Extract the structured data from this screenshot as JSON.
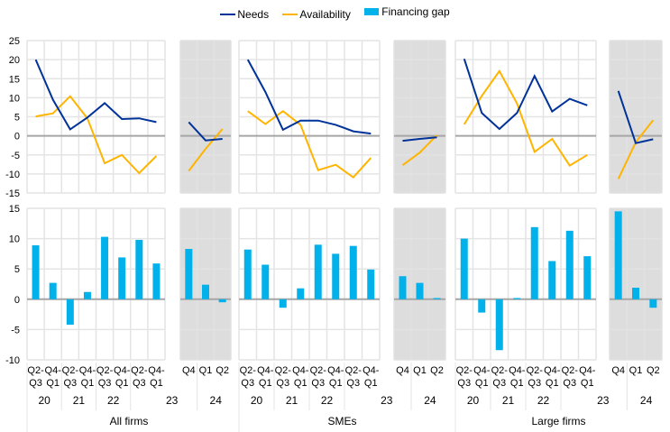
{
  "legend": [
    {
      "label": "Needs",
      "type": "line",
      "color": "#003299"
    },
    {
      "label": "Availability",
      "type": "line",
      "color": "#FFB400"
    },
    {
      "label": "Financing gap",
      "type": "bar",
      "color": "#00B1EA"
    }
  ],
  "chart_data": {
    "type": "line+bar",
    "title": "",
    "legend_position": "top-center",
    "grid": true,
    "top_chart": {
      "type": "line",
      "ylim": [
        -15,
        25
      ],
      "yticks": [
        25,
        20,
        15,
        10,
        5,
        0,
        -5,
        -10,
        -15
      ]
    },
    "bottom_chart": {
      "type": "bar",
      "ylim": [
        -10,
        15
      ],
      "yticks": [
        15,
        10,
        5,
        0,
        -5,
        -10
      ]
    },
    "groups": [
      {
        "name": "All firms",
        "main": {
          "quarter_labels": [
            [
              "Q2-",
              "Q3"
            ],
            [
              "Q4-",
              "Q1"
            ],
            [
              "Q2-",
              "Q3"
            ],
            [
              "Q4-",
              "Q1"
            ],
            [
              "Q2-",
              "Q3"
            ],
            [
              "Q4-",
              "Q1"
            ],
            [
              "Q2-",
              "Q3"
            ],
            [
              "Q4-",
              "Q1"
            ]
          ],
          "year_labels": [
            "20",
            "21",
            "22",
            "23"
          ],
          "needs": [
            20.0,
            9.5,
            1.7,
            4.8,
            8.6,
            4.4,
            4.6,
            3.6
          ],
          "availability": [
            5.1,
            5.9,
            10.4,
            4.6,
            -7.2,
            -5.0,
            -9.8,
            -5.3
          ],
          "financing_gap": [
            8.9,
            2.7,
            -4.2,
            1.2,
            10.3,
            6.9,
            9.8,
            5.9
          ]
        },
        "recent": {
          "quarter_labels": [
            "Q4",
            "Q1",
            "Q2"
          ],
          "year_label": "24",
          "needs": [
            3.6,
            -1.2,
            -0.8
          ],
          "availability": [
            -9.2,
            -3.4,
            1.8
          ],
          "financing_gap": [
            8.3,
            2.4,
            -0.5
          ]
        }
      },
      {
        "name": "SMEs",
        "main": {
          "quarter_labels": [
            [
              "Q2-",
              "Q3"
            ],
            [
              "Q4-",
              "Q1"
            ],
            [
              "Q2-",
              "Q3"
            ],
            [
              "Q4-",
              "Q1"
            ],
            [
              "Q2-",
              "Q3"
            ],
            [
              "Q4-",
              "Q1"
            ],
            [
              "Q2-",
              "Q3"
            ],
            [
              "Q4-",
              "Q1"
            ]
          ],
          "year_labels": [
            "20",
            "21",
            "22",
            "23"
          ],
          "needs": [
            20.0,
            11.5,
            1.6,
            4.0,
            4.0,
            2.9,
            1.2,
            0.6
          ],
          "availability": [
            6.5,
            3.1,
            6.5,
            2.9,
            -9.0,
            -7.6,
            -10.9,
            -5.8
          ],
          "financing_gap": [
            8.2,
            5.7,
            -1.4,
            1.8,
            9.0,
            7.5,
            8.8,
            4.9
          ]
        },
        "recent": {
          "quarter_labels": [
            "Q4",
            "Q1",
            "Q2"
          ],
          "year_label": "24",
          "needs": [
            -1.3,
            -0.8,
            -0.4
          ],
          "availability": [
            -7.7,
            -4.4,
            0.2
          ],
          "financing_gap": [
            3.8,
            2.7,
            0.2
          ]
        }
      },
      {
        "name": "Large firms",
        "main": {
          "quarter_labels": [
            [
              "Q2-",
              "Q3"
            ],
            [
              "Q4-",
              "Q1"
            ],
            [
              "Q2-",
              "Q3"
            ],
            [
              "Q4-",
              "Q1"
            ],
            [
              "Q2-",
              "Q3"
            ],
            [
              "Q4-",
              "Q1"
            ],
            [
              "Q2-",
              "Q3"
            ],
            [
              "Q4-",
              "Q1"
            ]
          ],
          "year_labels": [
            "20",
            "21",
            "22",
            "23"
          ],
          "needs": [
            20.2,
            6.0,
            1.8,
            6.0,
            15.7,
            6.4,
            9.7,
            8.0
          ],
          "availability": [
            3.0,
            10.5,
            17.0,
            8.5,
            -4.2,
            -0.8,
            -7.8,
            -5.0
          ],
          "financing_gap": [
            10.0,
            -2.2,
            -8.4,
            0.2,
            11.9,
            6.3,
            11.3,
            7.1
          ]
        },
        "recent": {
          "quarter_labels": [
            "Q4",
            "Q1",
            "Q2"
          ],
          "year_label": "24",
          "needs": [
            11.8,
            -1.9,
            -0.9
          ],
          "availability": [
            -11.3,
            -1.7,
            4.1
          ],
          "financing_gap": [
            14.5,
            1.9,
            -1.4
          ]
        }
      }
    ]
  }
}
